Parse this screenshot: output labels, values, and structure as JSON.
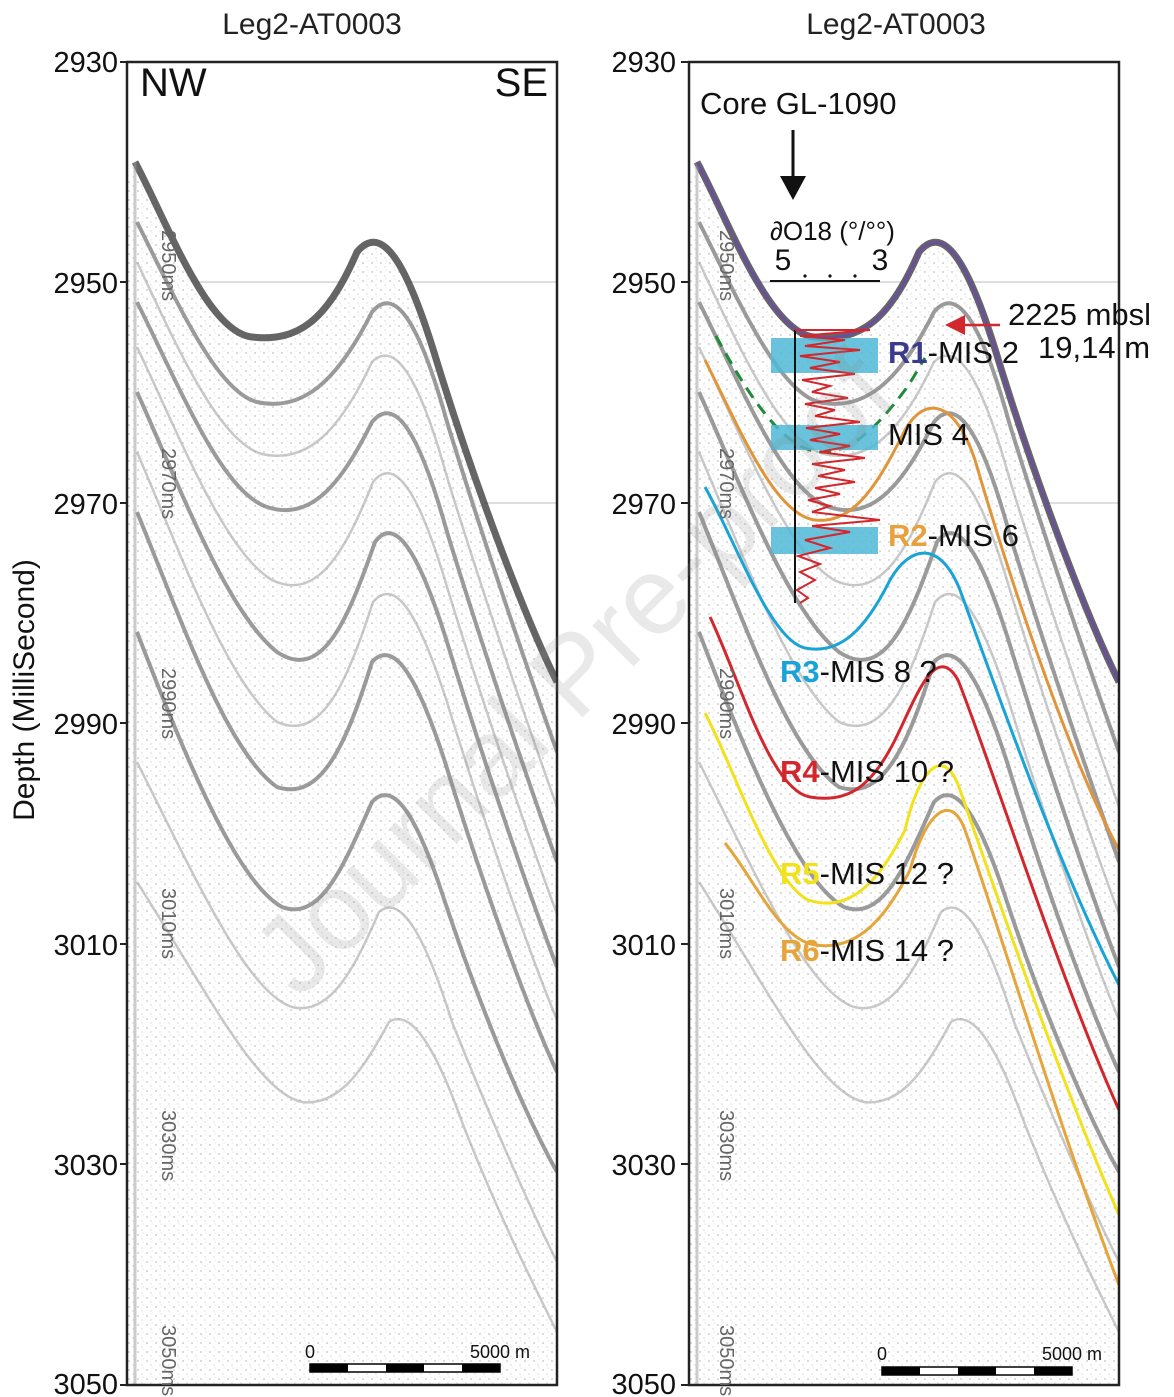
{
  "left_panel": {
    "title": "Leg2-AT0003",
    "nw_label": "NW",
    "se_label": "SE",
    "ms_marks": [
      "2950ms",
      "2970ms",
      "2990ms",
      "3010ms",
      "3030ms",
      "3050ms"
    ],
    "scale_bar": {
      "start_label": "0",
      "end_label": "5000 m"
    }
  },
  "right_panel": {
    "title": "Leg2-AT0003",
    "core_label": "Core GL-1090",
    "isotope_axis": {
      "title": "∂O18 (°/°°)",
      "left_value": "5",
      "right_value": "3"
    },
    "depth_annotation": {
      "line1": "2225 mbsl",
      "line2": "19,14 m"
    },
    "ms_marks": [
      "2950ms",
      "2970ms",
      "2990ms",
      "3010ms",
      "3030ms",
      "3050ms"
    ],
    "reflectors": [
      {
        "id": "R1",
        "suffix": "-MIS 2",
        "color": "#3b3a8c"
      },
      {
        "id": "",
        "suffix": "MIS 4",
        "color": "#111111"
      },
      {
        "id": "R2",
        "suffix": "-MIS 6",
        "color": "#e8a13c"
      },
      {
        "id": "R3",
        "suffix": "-MIS 8 ?",
        "color": "#1aa3d6"
      },
      {
        "id": "R4",
        "suffix": "-MIS 10 ?",
        "color": "#d1272d"
      },
      {
        "id": "R5",
        "suffix": "-MIS 12 ?",
        "color": "#f2e21b"
      },
      {
        "id": "R6",
        "suffix": "-MIS 14 ?",
        "color": "#e6a53a"
      }
    ],
    "scale_bar": {
      "start_label": "0",
      "end_label": "5000 m"
    }
  },
  "y_axis": {
    "title": "Depth (MilliSecond)",
    "ticks": [
      "2930",
      "2950",
      "2970",
      "2990",
      "3010",
      "3030",
      "3050"
    ]
  },
  "colors": {
    "purple_horizon": "#6a4f9a",
    "orange_horizon": "#e0953a",
    "cyan_horizon": "#1aa3d6",
    "red_horizon": "#d1272d",
    "yellow_horizon": "#f2e21b",
    "orange2_horizon": "#e6a53a",
    "dashed_green": "#1f8a3a",
    "isotope_curve": "#d1272d",
    "mis_boxes": "#4fb8d6"
  },
  "watermark": "Journal Pre-proof"
}
